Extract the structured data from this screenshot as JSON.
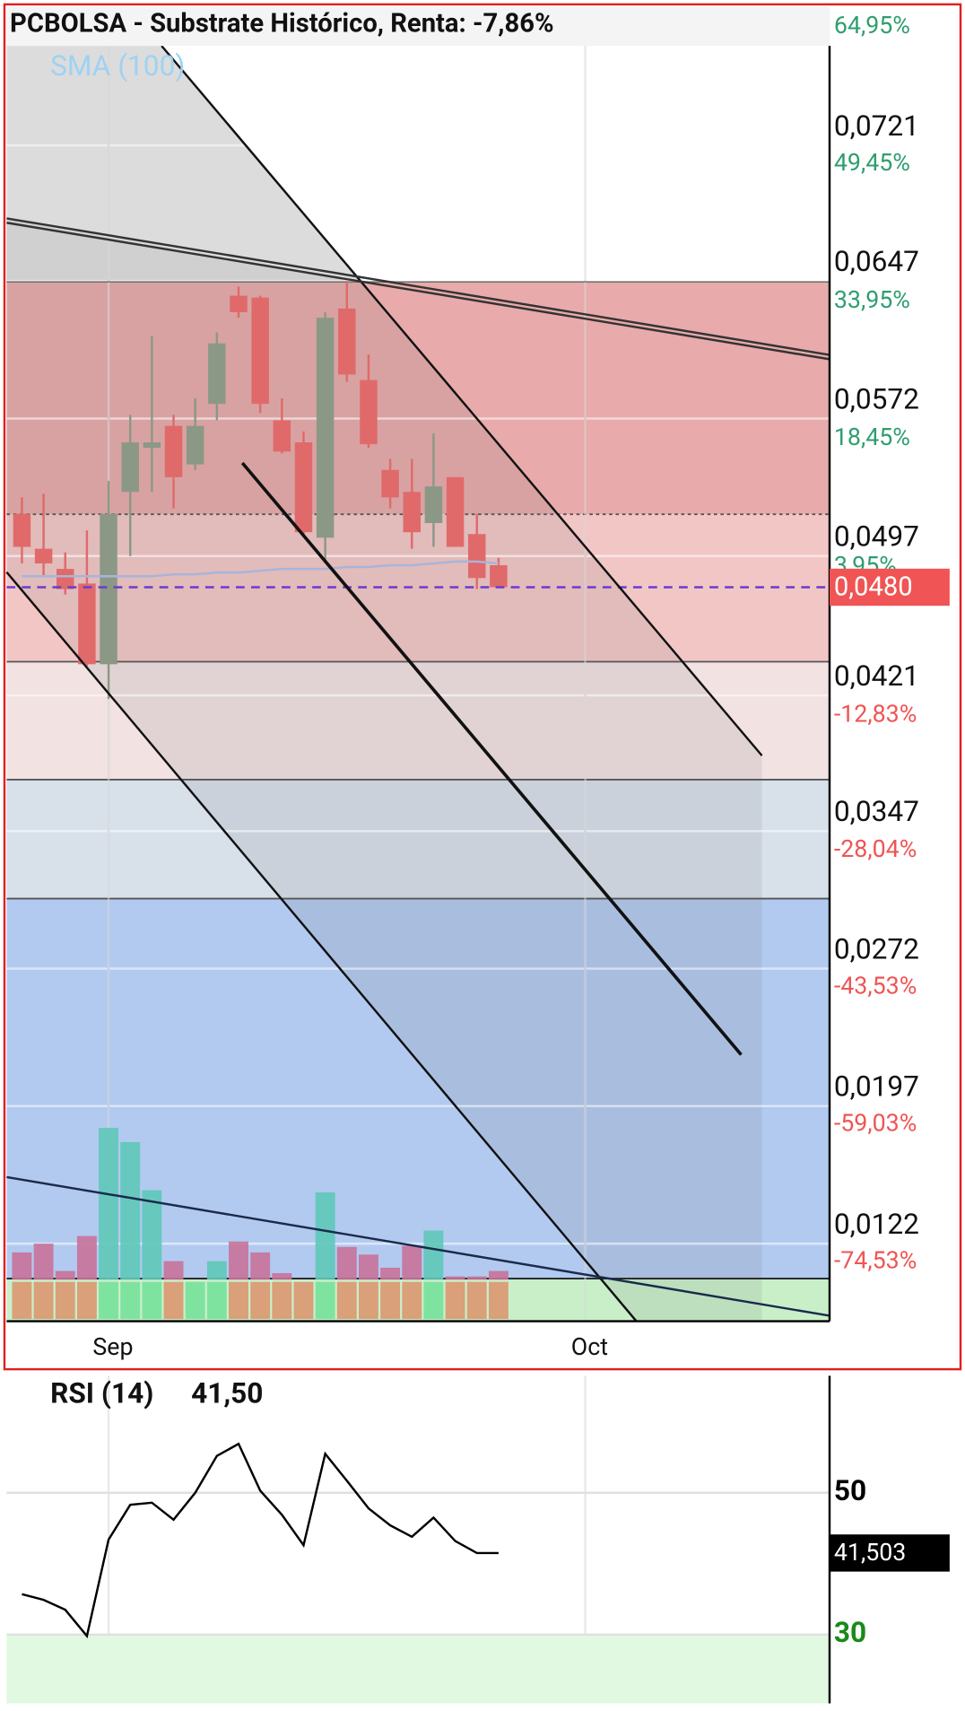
{
  "chart_data": [
    {
      "type": "candlestick",
      "title": "PCBOLSA - Substrate Histórico, Renta: -7,86%",
      "categories": [
        null,
        null,
        null,
        null,
        "Sep",
        null,
        null,
        null,
        null,
        null,
        null,
        null,
        null,
        null,
        null,
        null,
        null,
        null,
        null,
        null,
        null,
        null,
        null,
        null,
        null,
        null,
        "Oct"
      ],
      "open": [
        0.052,
        0.0501,
        0.049,
        0.0482,
        0.0438,
        0.0532,
        0.0556,
        0.0568,
        0.0547,
        0.058,
        0.0639,
        0.0638,
        0.0571,
        0.0559,
        0.0507,
        0.0632,
        0.0593,
        0.0544,
        0.0532,
        0.0515,
        0.054,
        0.0509,
        0.0492,
        null,
        null,
        null,
        null
      ],
      "high": [
        0.0529,
        0.0531,
        0.0499,
        0.0511,
        0.0538,
        0.0574,
        0.0617,
        0.0574,
        0.0583,
        0.0619,
        0.0644,
        0.0639,
        0.0583,
        0.0565,
        0.063,
        0.0647,
        0.0607,
        0.055,
        0.055,
        0.0564,
        0.054,
        0.052,
        0.0496,
        null,
        null,
        null,
        null
      ],
      "low": [
        0.0493,
        0.0486,
        0.0476,
        0.0437,
        0.0419,
        0.0497,
        0.0532,
        0.0523,
        0.0544,
        0.0571,
        0.0627,
        0.0575,
        0.0553,
        0.0508,
        0.0493,
        0.0592,
        0.0556,
        0.0523,
        0.0501,
        0.0502,
        0.0502,
        0.0479,
        0.048,
        null,
        null,
        null,
        null
      ],
      "close": [
        0.0502,
        0.0493,
        0.0479,
        0.0438,
        0.052,
        0.0559,
        0.0559,
        0.054,
        0.0568,
        0.0613,
        0.063,
        0.058,
        0.0554,
        0.051,
        0.0627,
        0.0596,
        0.0558,
        0.0529,
        0.051,
        0.0535,
        0.0502,
        0.0485,
        0.048,
        null,
        null,
        null,
        null
      ],
      "up_color": "#8c9886",
      "down_color": "#e06a6a",
      "sma": {
        "name": "SMA (100)",
        "color": "#a8b4d8",
        "values": [
          0.0486,
          0.0486,
          0.0486,
          0.0486,
          0.0486,
          0.0486,
          0.0486,
          0.0487,
          0.0487,
          0.0488,
          0.0488,
          0.0489,
          0.049,
          0.049,
          0.049,
          0.0491,
          0.0491,
          0.0492,
          0.0492,
          0.0493,
          0.0494,
          0.0494,
          0.0493,
          null,
          null,
          null,
          null
        ]
      },
      "volume": {
        "up_color": "#5ec8b8",
        "down_color": "#c8729a",
        "values": [
          25,
          33,
          8,
          40,
          139,
          126,
          82,
          17,
          0,
          17,
          35,
          25,
          6,
          0,
          80,
          30,
          23,
          11,
          31,
          45,
          3,
          3,
          8,
          null,
          null,
          null,
          null
        ]
      },
      "last_price": {
        "value": 0.048,
        "label": "0,0480"
      },
      "ylim": [
        0.00797,
        0.07967
      ],
      "yticks": [
        {
          "value": 0.0721,
          "label": "0,0721"
        },
        {
          "value": 0.0647,
          "label": "0,0647"
        },
        {
          "value": 0.0572,
          "label": "0,0572"
        },
        {
          "value": 0.0497,
          "label": "0,0497"
        },
        {
          "value": 0.0421,
          "label": "0,0421"
        },
        {
          "value": 0.0347,
          "label": "0,0347"
        },
        {
          "value": 0.0272,
          "label": "0,0272"
        },
        {
          "value": 0.0197,
          "label": "0,0197"
        },
        {
          "value": 0.0122,
          "label": "0,0122"
        }
      ],
      "y2lim": [
        -83.3,
        65.13
      ],
      "y2ticks": [
        {
          "value": 64.95,
          "label": "64,95%"
        },
        {
          "value": 49.45,
          "label": "49,45%"
        },
        {
          "value": 33.95,
          "label": "33,95%"
        },
        {
          "value": 18.45,
          "label": "18,45%"
        },
        {
          "value": 3.95,
          "label": "3,95%"
        },
        {
          "value": -12.83,
          "label": "-12,83%"
        },
        {
          "value": -28.04,
          "label": "-28,04%"
        },
        {
          "value": -43.53,
          "label": "-43,53%"
        },
        {
          "value": -59.03,
          "label": "-59,03%"
        },
        {
          "value": -74.53,
          "label": "-74,53%"
        }
      ],
      "y2_positive_color": "#2e9e6e",
      "y2_negative_color": "#f05454",
      "grid": true
    },
    {
      "type": "line",
      "title": "RSI (14)",
      "current": {
        "value": 41.5,
        "label": "41,50"
      },
      "last_value": {
        "value": 41.503,
        "label": "41,503"
      },
      "color": "#000000",
      "values": [
        35.7,
        34.9,
        33.5,
        29.8,
        43.4,
        48.3,
        48.6,
        46.2,
        50.0,
        55.2,
        56.9,
        50.3,
        46.9,
        42.6,
        55.5,
        51.7,
        47.8,
        45.4,
        43.8,
        46.5,
        43.2,
        41.5,
        41.5,
        null,
        null,
        null,
        null
      ],
      "ylim": [
        20.3,
        66.5
      ],
      "yticks": [
        50,
        30
      ],
      "ytick_colors": [
        "#000000",
        "#1a8a1a"
      ],
      "grid": true
    }
  ]
}
